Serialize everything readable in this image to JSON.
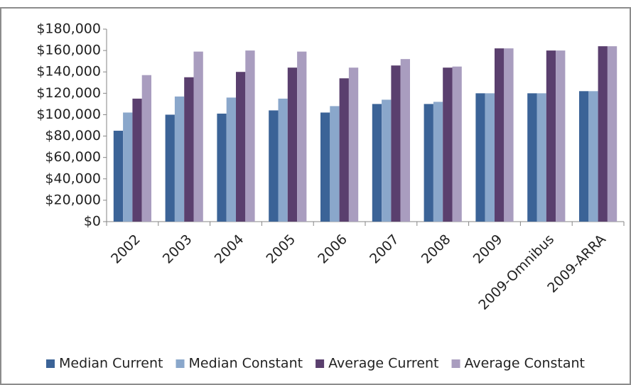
{
  "chart_data": {
    "type": "bar",
    "categories": [
      "2002",
      "2003",
      "2004",
      "2005",
      "2006",
      "2007",
      "2008",
      "2009",
      "2009-Omnibus",
      "2009-ARRA"
    ],
    "series": [
      {
        "name": "Median Current",
        "color": "#3b6397",
        "values": [
          85000,
          100000,
          101000,
          104000,
          102000,
          110000,
          110000,
          120000,
          120000,
          122000
        ]
      },
      {
        "name": "Median Constant",
        "color": "#8aa7cb",
        "values": [
          102000,
          117000,
          116000,
          115000,
          108000,
          114000,
          112000,
          120000,
          120000,
          122000
        ]
      },
      {
        "name": "Average Current",
        "color": "#5a3f6e",
        "values": [
          115000,
          135000,
          140000,
          144000,
          134000,
          146000,
          144000,
          162000,
          160000,
          164000
        ]
      },
      {
        "name": "Average Constant",
        "color": "#a99dbf",
        "values": [
          137000,
          159000,
          160000,
          159000,
          144000,
          152000,
          145000,
          162000,
          160000,
          164000
        ]
      }
    ],
    "ylim": [
      0,
      180000
    ],
    "yticks": [
      {
        "value": 0,
        "label": "$0"
      },
      {
        "value": 20000,
        "label": "$20,000"
      },
      {
        "value": 40000,
        "label": "$40,000"
      },
      {
        "value": 60000,
        "label": "$60,000"
      },
      {
        "value": 80000,
        "label": "$80,000"
      },
      {
        "value": 100000,
        "label": "$100,000"
      },
      {
        "value": 120000,
        "label": "$120,000"
      },
      {
        "value": 140000,
        "label": "$140,000"
      },
      {
        "value": 160000,
        "label": "$160,000"
      },
      {
        "value": 180000,
        "label": "$180,000"
      }
    ],
    "legend": "bottom"
  }
}
